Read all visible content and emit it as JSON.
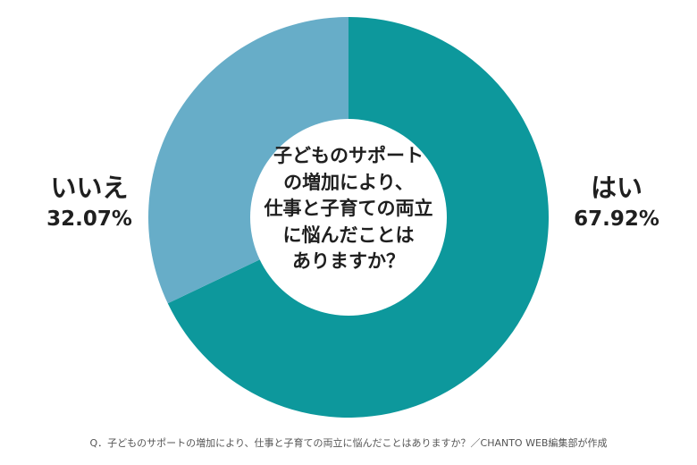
{
  "chart_data": {
    "type": "pie",
    "variant": "donut",
    "title": "子どものサポートの増加により、仕事と子育ての両立に悩んだことはありますか？",
    "center_text_lines": [
      "子どものサポート",
      "の増加により、",
      "仕事と子育ての両立",
      "に悩んだことは",
      "ありますか？"
    ],
    "categories": [
      "はい",
      "いいえ"
    ],
    "values": [
      67.92,
      32.07
    ],
    "value_labels": [
      "67.92%",
      "32.07%"
    ],
    "colors": [
      "#0d989c",
      "#67adc8"
    ],
    "legend_position": "none (direct labels left/right)",
    "start_angle": "12 o'clock, clockwise"
  },
  "labels": {
    "yes": {
      "name": "はい",
      "pct": "67.92%"
    },
    "no": {
      "name": "いいえ",
      "pct": "32.07%"
    }
  },
  "footnote": "Q．子どものサポートの増加により、仕事と子育ての両立に悩んだことはありますか？／CHANTO WEB編集部が作成"
}
